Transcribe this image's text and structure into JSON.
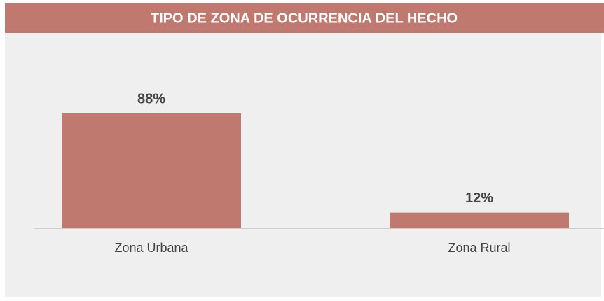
{
  "chart_data": {
    "type": "bar",
    "title": "TIPO DE ZONA DE OCURRENCIA DEL HECHO",
    "categories": [
      "Zona Urbana",
      "Zona Rural"
    ],
    "values": [
      88,
      12
    ],
    "value_labels": [
      "88%",
      "12%"
    ],
    "color": "#c0796f"
  }
}
